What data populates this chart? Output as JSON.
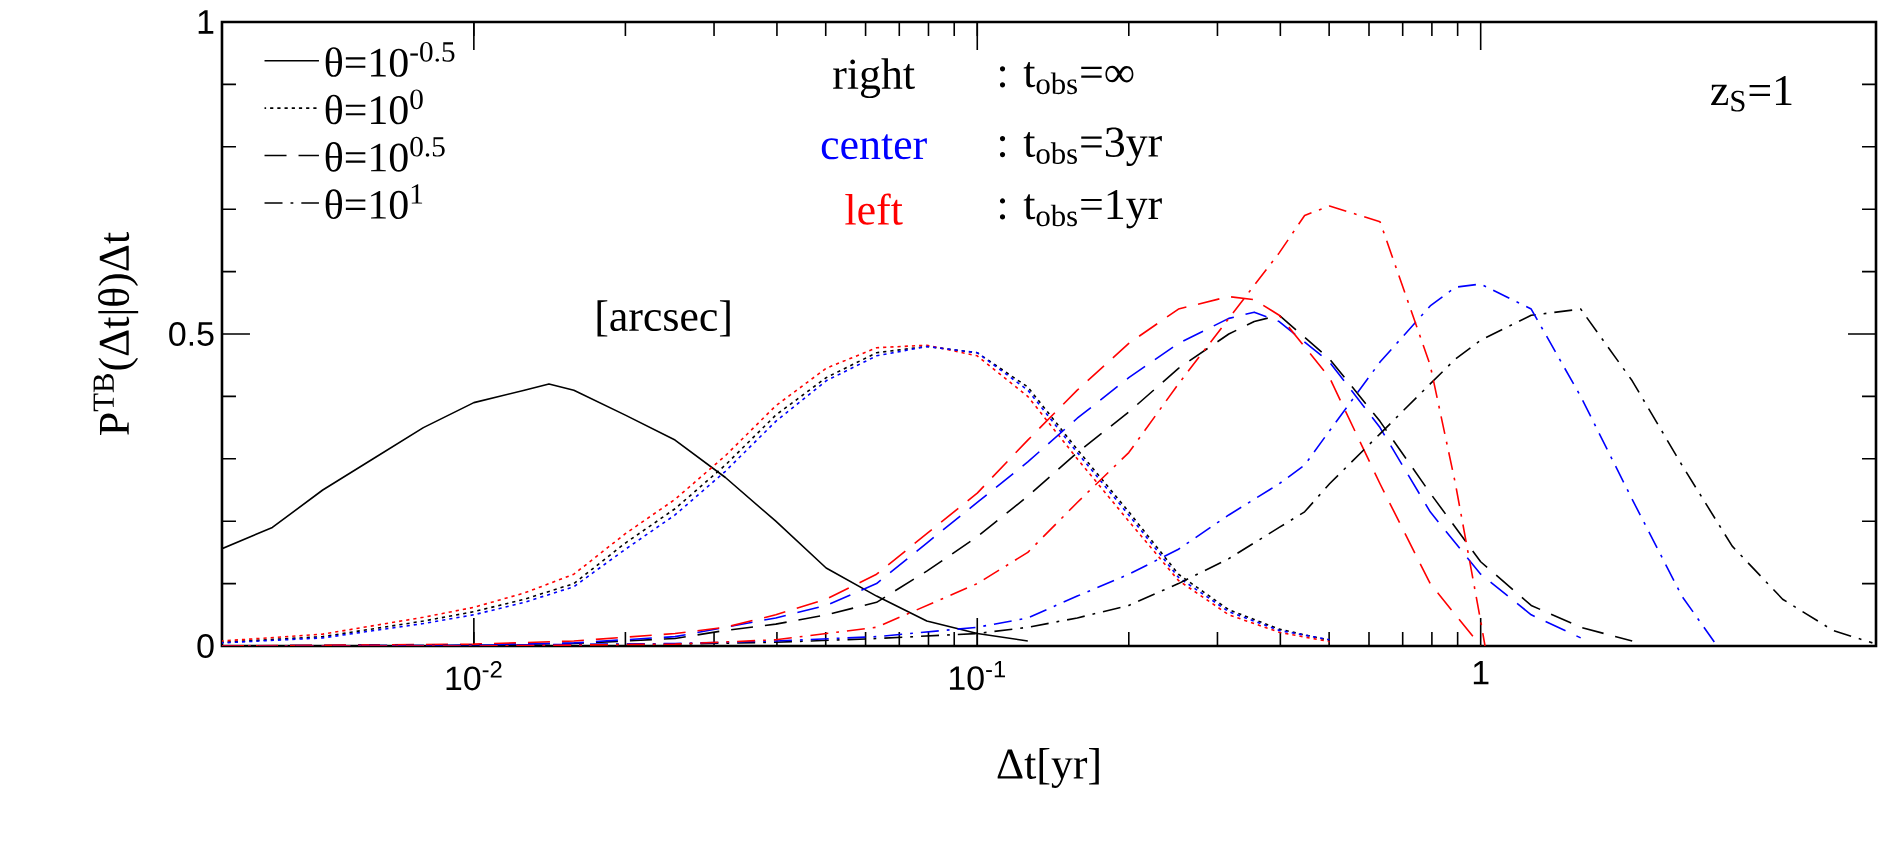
{
  "chart_data": {
    "type": "line",
    "xlabel": "Δt[yr]",
    "ylabel": "P$^{TB}$(Δt|θ)Δt",
    "log": "x",
    "xlim": [
      0.00316,
      6.1
    ],
    "ylim": [
      0,
      1
    ],
    "xticks": [
      {
        "value": 0.01,
        "label": "10$^{-2}$"
      },
      {
        "value": 0.1,
        "label": "10$^{-1}$"
      },
      1
    ],
    "yticks": [
      0,
      0.5,
      1
    ],
    "legend": "top left",
    "annotations": [
      "right",
      ": t$_{obs}$=∞",
      "center",
      ": t$_{obs}$=3yr",
      "left",
      ": t$_{obs}$=1yr",
      "[arcsec]",
      "z$_{S}$=1"
    ],
    "series": [
      {
        "name": "θ=10$^{-0.5}$",
        "color": "#000000",
        "line_style": "solid",
        "x": [
          0.00316,
          0.00398,
          0.00501,
          0.00631,
          0.00794,
          0.01,
          0.0126,
          0.0141,
          0.0158,
          0.02,
          0.0251,
          0.0316,
          0.0398,
          0.0501,
          0.0631,
          0.0794,
          0.1,
          0.126
        ],
        "values": [
          0.156,
          0.19,
          0.25,
          0.3,
          0.35,
          0.39,
          0.41,
          0.42,
          0.41,
          0.37,
          0.33,
          0.27,
          0.2,
          0.125,
          0.08,
          0.04,
          0.02,
          0.008
        ]
      },
      {
        "name": "θ=10$^{0}$",
        "color": "#000000",
        "line_style": "dotted",
        "x": [
          0.00316,
          0.00501,
          0.00794,
          0.01,
          0.0126,
          0.0158,
          0.02,
          0.0251,
          0.0316,
          0.0398,
          0.0501,
          0.0631,
          0.0794,
          0.1,
          0.126,
          0.158,
          0.2,
          0.251,
          0.316,
          0.398,
          0.501
        ],
        "values": [
          0.006,
          0.015,
          0.04,
          0.055,
          0.075,
          0.1,
          0.165,
          0.22,
          0.29,
          0.37,
          0.43,
          0.47,
          0.48,
          0.47,
          0.415,
          0.315,
          0.215,
          0.115,
          0.058,
          0.027,
          0.009
        ]
      },
      {
        "color": "#ff0000",
        "line_style": "dotted",
        "x": [
          0.00316,
          0.00501,
          0.00794,
          0.01,
          0.0126,
          0.0158,
          0.02,
          0.0251,
          0.0316,
          0.0398,
          0.0501,
          0.0631,
          0.0794,
          0.1,
          0.126,
          0.158,
          0.2,
          0.251,
          0.316,
          0.398,
          0.501
        ],
        "values": [
          0.008,
          0.019,
          0.046,
          0.062,
          0.085,
          0.115,
          0.18,
          0.235,
          0.305,
          0.385,
          0.445,
          0.478,
          0.482,
          0.465,
          0.4,
          0.3,
          0.2,
          0.105,
          0.05,
          0.022,
          0.007
        ]
      },
      {
        "color": "#0000ff",
        "line_style": "dotted",
        "x": [
          0.00316,
          0.00501,
          0.00794,
          0.01,
          0.0126,
          0.0158,
          0.02,
          0.0251,
          0.0316,
          0.0398,
          0.0501,
          0.0631,
          0.0794,
          0.1,
          0.126,
          0.158,
          0.2,
          0.251,
          0.316,
          0.398,
          0.501
        ],
        "values": [
          0.005,
          0.013,
          0.036,
          0.05,
          0.07,
          0.095,
          0.155,
          0.21,
          0.28,
          0.36,
          0.425,
          0.465,
          0.48,
          0.47,
          0.41,
          0.31,
          0.21,
          0.11,
          0.055,
          0.025,
          0.01
        ]
      },
      {
        "name": "θ=10$^{0.5}$",
        "color": "#000000",
        "line_style": "dashed",
        "x": [
          0.00316,
          0.01,
          0.0158,
          0.0251,
          0.0316,
          0.0398,
          0.0501,
          0.0631,
          0.0794,
          0.1,
          0.126,
          0.158,
          0.2,
          0.251,
          0.316,
          0.355,
          0.398,
          0.501,
          0.631,
          0.794,
          1,
          1.26,
          1.58,
          2.0
        ],
        "values": [
          0,
          0.002,
          0.004,
          0.012,
          0.025,
          0.035,
          0.05,
          0.07,
          0.12,
          0.175,
          0.24,
          0.31,
          0.375,
          0.445,
          0.5,
          0.52,
          0.53,
          0.46,
          0.36,
          0.245,
          0.135,
          0.065,
          0.03,
          0.008
        ]
      },
      {
        "color": "#0000ff",
        "line_style": "dashed",
        "x": [
          0.00316,
          0.01,
          0.0158,
          0.0251,
          0.0316,
          0.0398,
          0.0501,
          0.0631,
          0.0794,
          0.1,
          0.126,
          0.158,
          0.2,
          0.251,
          0.316,
          0.355,
          0.398,
          0.501,
          0.631,
          0.794,
          1,
          1.26,
          1.58
        ],
        "values": [
          0,
          0.002,
          0.005,
          0.015,
          0.03,
          0.045,
          0.065,
          0.1,
          0.165,
          0.23,
          0.295,
          0.365,
          0.43,
          0.485,
          0.525,
          0.535,
          0.52,
          0.455,
          0.35,
          0.215,
          0.115,
          0.05,
          0.013
        ]
      },
      {
        "color": "#ff0000",
        "line_style": "dashed",
        "x": [
          0.00316,
          0.01,
          0.0158,
          0.0251,
          0.0316,
          0.0398,
          0.0501,
          0.0631,
          0.0794,
          0.1,
          0.126,
          0.158,
          0.2,
          0.251,
          0.316,
          0.355,
          0.398,
          0.501,
          0.631,
          0.794,
          1
        ],
        "values": [
          0,
          0.003,
          0.008,
          0.02,
          0.03,
          0.05,
          0.075,
          0.115,
          0.18,
          0.245,
          0.33,
          0.41,
          0.485,
          0.54,
          0.56,
          0.555,
          0.53,
          0.43,
          0.26,
          0.1,
          0
        ]
      },
      {
        "name": "θ=10$^{1}$",
        "color": "#000000",
        "line_style": "dashdot",
        "x": [
          0.00316,
          0.01,
          0.0251,
          0.0398,
          0.0631,
          0.1,
          0.126,
          0.158,
          0.2,
          0.251,
          0.316,
          0.398,
          0.447,
          0.501,
          0.631,
          0.794,
          0.891,
          1,
          1.26,
          1.58,
          2.0,
          2.51,
          3.16,
          3.98,
          5.01,
          6.0
        ],
        "values": [
          0,
          0.001,
          0.003,
          0.006,
          0.012,
          0.02,
          0.03,
          0.045,
          0.065,
          0.1,
          0.14,
          0.19,
          0.215,
          0.26,
          0.34,
          0.42,
          0.46,
          0.49,
          0.53,
          0.54,
          0.425,
          0.29,
          0.16,
          0.075,
          0.025,
          0.005
        ]
      },
      {
        "color": "#0000ff",
        "line_style": "dashdot",
        "x": [
          0.00316,
          0.01,
          0.0251,
          0.0398,
          0.0631,
          0.1,
          0.126,
          0.158,
          0.2,
          0.251,
          0.316,
          0.398,
          0.447,
          0.501,
          0.631,
          0.794,
          0.891,
          1,
          1.26,
          1.58,
          2.0,
          2.51,
          2.95
        ],
        "values": [
          0,
          0.001,
          0.004,
          0.008,
          0.015,
          0.03,
          0.045,
          0.08,
          0.115,
          0.155,
          0.21,
          0.26,
          0.29,
          0.345,
          0.455,
          0.545,
          0.575,
          0.58,
          0.54,
          0.4,
          0.235,
          0.08,
          0
        ]
      },
      {
        "color": "#ff0000",
        "line_style": "dashdot",
        "x": [
          0.00316,
          0.01,
          0.0251,
          0.0398,
          0.0631,
          0.1,
          0.126,
          0.158,
          0.2,
          0.251,
          0.316,
          0.398,
          0.447,
          0.501,
          0.631,
          0.794,
          0.891,
          1,
          1.02
        ],
        "values": [
          0,
          0,
          0.003,
          0.01,
          0.03,
          0.1,
          0.15,
          0.23,
          0.31,
          0.42,
          0.525,
          0.63,
          0.69,
          0.705,
          0.68,
          0.45,
          0.26,
          0.04,
          0
        ]
      }
    ]
  }
}
